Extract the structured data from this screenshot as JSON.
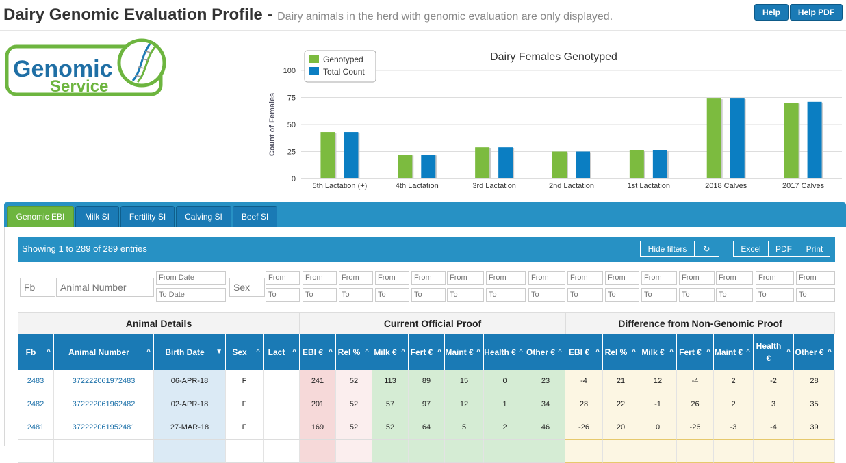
{
  "header": {
    "title": "Dairy Genomic Evaluation Profile -",
    "subtitle": "Dairy animals in the herd with genomic evaluation are only displayed.",
    "help_label": "Help",
    "help_pdf_label": "Help PDF"
  },
  "logo": {
    "line1": "Genomic",
    "line2": "Service"
  },
  "chart_data": {
    "type": "bar",
    "title": "Dairy Females Genotyped",
    "ylabel": "Count of Females",
    "xlabel": "",
    "ylim": [
      0,
      100
    ],
    "yticks": [
      0,
      25,
      50,
      75,
      100
    ],
    "categories": [
      "5th Lactation (+)",
      "4th Lactation",
      "3rd Lactation",
      "2nd Lactation",
      "1st Lactation",
      "2018 Calves",
      "2017 Calves"
    ],
    "series": [
      {
        "name": "Genotyped",
        "color": "#7cbb3f",
        "values": [
          43,
          22,
          29,
          25,
          26,
          74,
          70
        ]
      },
      {
        "name": "Total Count",
        "color": "#0b7ec2",
        "values": [
          43,
          22,
          29,
          25,
          26,
          74,
          71
        ]
      }
    ],
    "legend": "top-left",
    "grid": true
  },
  "tabs": [
    {
      "label": "Genomic EBI",
      "active": true
    },
    {
      "label": "Milk SI",
      "active": false
    },
    {
      "label": "Fertility SI",
      "active": false
    },
    {
      "label": "Calving SI",
      "active": false
    },
    {
      "label": "Beef SI",
      "active": false
    }
  ],
  "table_info": {
    "showing": "Showing 1 to 289 of 289 entries",
    "hide_filters": "Hide filters",
    "reset_icon": "↻",
    "excel": "Excel",
    "pdf": "PDF",
    "print": "Print"
  },
  "filters": {
    "fb_placeholder": "Fb",
    "animal_placeholder": "Animal Number",
    "from_date": "From Date",
    "to_date": "To Date",
    "sex_placeholder": "Sex",
    "from": "From",
    "to": "To"
  },
  "groups": [
    "Animal Details",
    "Current Official Proof",
    "Difference from Non-Genomic Proof"
  ],
  "columns": [
    {
      "label": "Fb",
      "sort": "^"
    },
    {
      "label": "Animal Number",
      "sort": "^"
    },
    {
      "label": "Birth Date",
      "sort": "▼"
    },
    {
      "label": "Sex",
      "sort": "^"
    },
    {
      "label": "Lact",
      "sort": "^"
    },
    {
      "label": "EBI €",
      "sort": "^"
    },
    {
      "label": "Rel %",
      "sort": "^"
    },
    {
      "label": "Milk €",
      "sort": "^"
    },
    {
      "label": "Fert €",
      "sort": "^"
    },
    {
      "label": "Maint €",
      "sort": "^"
    },
    {
      "label": "Health €",
      "sort": "^"
    },
    {
      "label": "Other €",
      "sort": "^"
    },
    {
      "label": "EBI €",
      "sort": "^"
    },
    {
      "label": "Rel %",
      "sort": "^"
    },
    {
      "label": "Milk €",
      "sort": "^"
    },
    {
      "label": "Fert €",
      "sort": "^"
    },
    {
      "label": "Maint €",
      "sort": "^"
    },
    {
      "label": "Health €",
      "sort": "^"
    },
    {
      "label": "Other €",
      "sort": "^"
    }
  ],
  "rows": [
    [
      "2483",
      "372222061972483",
      "06-APR-18",
      "F",
      "",
      "241",
      "52",
      "113",
      "89",
      "15",
      "0",
      "23",
      "-4",
      "21",
      "12",
      "-4",
      "2",
      "-2",
      "28"
    ],
    [
      "2482",
      "372222061962482",
      "02-APR-18",
      "F",
      "",
      "201",
      "52",
      "57",
      "97",
      "12",
      "1",
      "34",
      "28",
      "22",
      "-1",
      "26",
      "2",
      "3",
      "35"
    ],
    [
      "2481",
      "372222061952481",
      "27-MAR-18",
      "F",
      "",
      "169",
      "52",
      "52",
      "64",
      "5",
      "2",
      "46",
      "-26",
      "20",
      "0",
      "-26",
      "-3",
      "-4",
      "39"
    ],
    [
      "",
      "",
      "",
      "",
      "",
      "",
      "",
      "",
      "",
      "",
      "",
      "",
      "",
      "",
      "",
      "",
      "",
      "",
      ""
    ]
  ]
}
